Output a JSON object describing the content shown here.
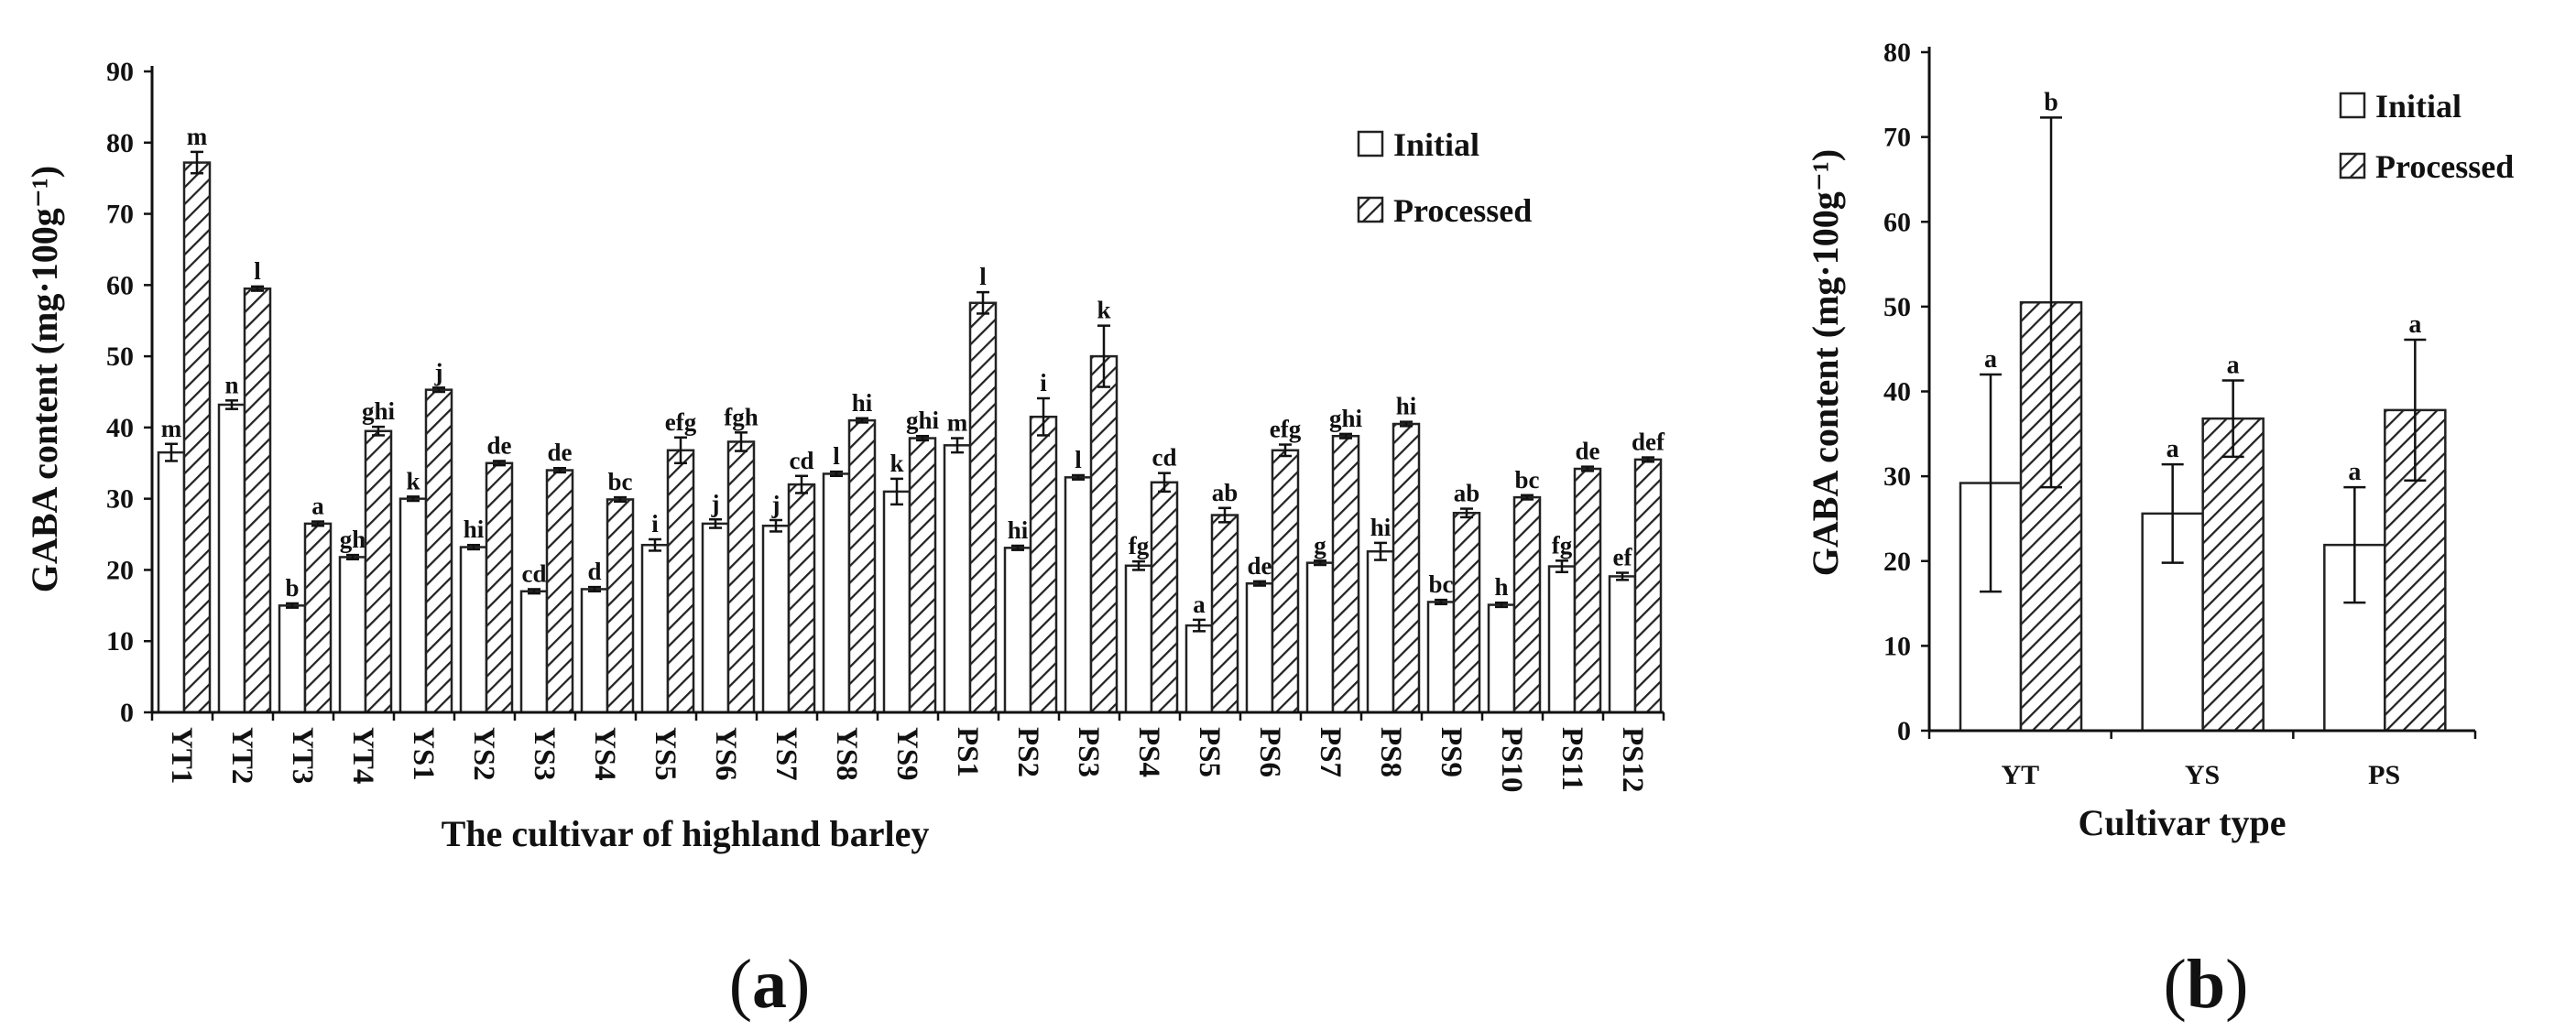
{
  "chart_data": [
    {
      "type": "bar",
      "panel": "a",
      "ylabel": "GABA content (mg·100g⁻¹)",
      "xlabel": "The cultivar of highland barley",
      "ylim": [
        0,
        90
      ],
      "yticks": [
        0,
        10,
        20,
        30,
        40,
        50,
        60,
        70,
        80,
        90
      ],
      "grid": false,
      "legend_position": "top-right",
      "categories": [
        "YT1",
        "YT2",
        "YT3",
        "YT4",
        "YS1",
        "YS2",
        "YS3",
        "YS4",
        "YS5",
        "YS6",
        "YS7",
        "YS8",
        "YS9",
        "PS1",
        "PS2",
        "PS3",
        "PS4",
        "PS5",
        "PS6",
        "PS7",
        "PS8",
        "PS9",
        "PS10",
        "PS11",
        "PS12"
      ],
      "series": [
        {
          "name": "Initial",
          "pattern": "open",
          "values": [
            36.5,
            43.2,
            15.0,
            21.8,
            30.0,
            23.2,
            17.0,
            17.3,
            23.5,
            26.5,
            26.2,
            33.5,
            31.0,
            37.5,
            23.1,
            33.0,
            20.6,
            12.2,
            18.1,
            21.0,
            22.6,
            15.5,
            15.1,
            20.5,
            19.1
          ],
          "errors": [
            1.2,
            0.6,
            0.3,
            0.3,
            0.3,
            0.3,
            0.3,
            0.3,
            0.8,
            0.6,
            0.8,
            0.3,
            1.8,
            1.0,
            0.3,
            0.3,
            0.6,
            0.8,
            0.3,
            0.3,
            1.2,
            0.3,
            0.3,
            0.8,
            0.5
          ],
          "labels": [
            "m",
            "n",
            "b",
            "gh",
            "k",
            "hi",
            "cd",
            "d",
            "i",
            "j",
            "j",
            "l",
            "k",
            "m",
            "hi",
            "l",
            "fg",
            "a",
            "de",
            "g",
            "hi",
            "bc",
            "h",
            "fg",
            "ef"
          ]
        },
        {
          "name": "Processed",
          "pattern": "hatched",
          "values": [
            77.2,
            59.5,
            26.5,
            39.5,
            45.3,
            35.0,
            34.0,
            29.9,
            36.8,
            38.0,
            32.0,
            41.0,
            38.5,
            57.5,
            41.5,
            50.0,
            32.3,
            27.7,
            36.8,
            38.8,
            40.5,
            28.0,
            30.2,
            34.2,
            35.5
          ],
          "errors": [
            1.5,
            0.3,
            0.3,
            0.6,
            0.3,
            0.3,
            0.3,
            0.3,
            1.8,
            1.3,
            1.2,
            0.3,
            0.3,
            1.5,
            2.6,
            4.3,
            1.3,
            1.0,
            0.8,
            0.3,
            0.3,
            0.6,
            0.3,
            0.3,
            0.3
          ],
          "labels": [
            "m",
            "l",
            "a",
            "ghi",
            "j",
            "de",
            "de",
            "bc",
            "efg",
            "fgh",
            "cd",
            "hi",
            "ghi",
            "l",
            "i",
            "k",
            "cd",
            "ab",
            "efg",
            "ghi",
            "hi",
            "ab",
            "bc",
            "de",
            "def"
          ]
        }
      ]
    },
    {
      "type": "bar",
      "panel": "b",
      "ylabel": "GABA content (mg·100g⁻¹)",
      "xlabel": "Cultivar type",
      "ylim": [
        0,
        80
      ],
      "yticks": [
        0,
        10,
        20,
        30,
        40,
        50,
        60,
        70,
        80
      ],
      "grid": false,
      "legend_position": "top-right",
      "categories": [
        "YT",
        "YS",
        "PS"
      ],
      "series": [
        {
          "name": "Initial",
          "pattern": "open",
          "values": [
            29.2,
            25.6,
            21.9
          ],
          "errors": [
            12.8,
            5.8,
            6.8
          ],
          "labels": [
            "a",
            "a",
            "a"
          ]
        },
        {
          "name": "Processed",
          "pattern": "hatched",
          "values": [
            50.5,
            36.8,
            37.8
          ],
          "errors": [
            21.8,
            4.5,
            8.3
          ],
          "labels": [
            "b",
            "a",
            "a"
          ]
        }
      ]
    }
  ],
  "panel_labels": {
    "a": "(a)",
    "b": "(b)"
  }
}
